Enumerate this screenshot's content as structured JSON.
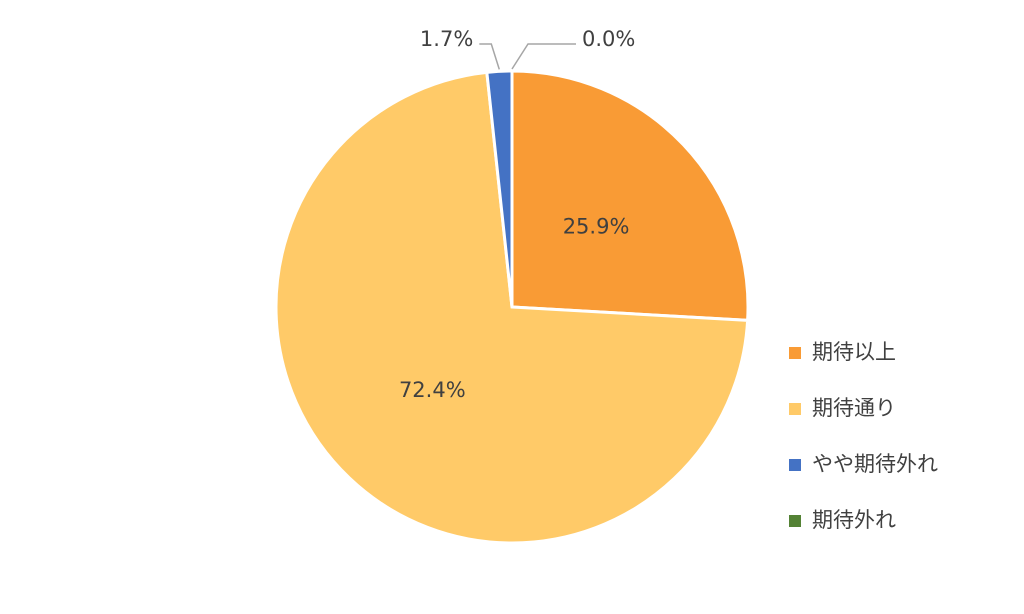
{
  "chart_data": {
    "type": "pie",
    "categories": [
      "期待以上",
      "期待通り",
      "やや期待外れ",
      "期待外れ"
    ],
    "values": [
      25.9,
      72.4,
      1.7,
      0.0
    ],
    "value_labels": [
      "25.9%",
      "72.4%",
      "1.7%",
      "0.0%"
    ],
    "colors": [
      "#F99B35",
      "#FFCA68",
      "#4472C4",
      "#548235"
    ],
    "legend": "right"
  }
}
